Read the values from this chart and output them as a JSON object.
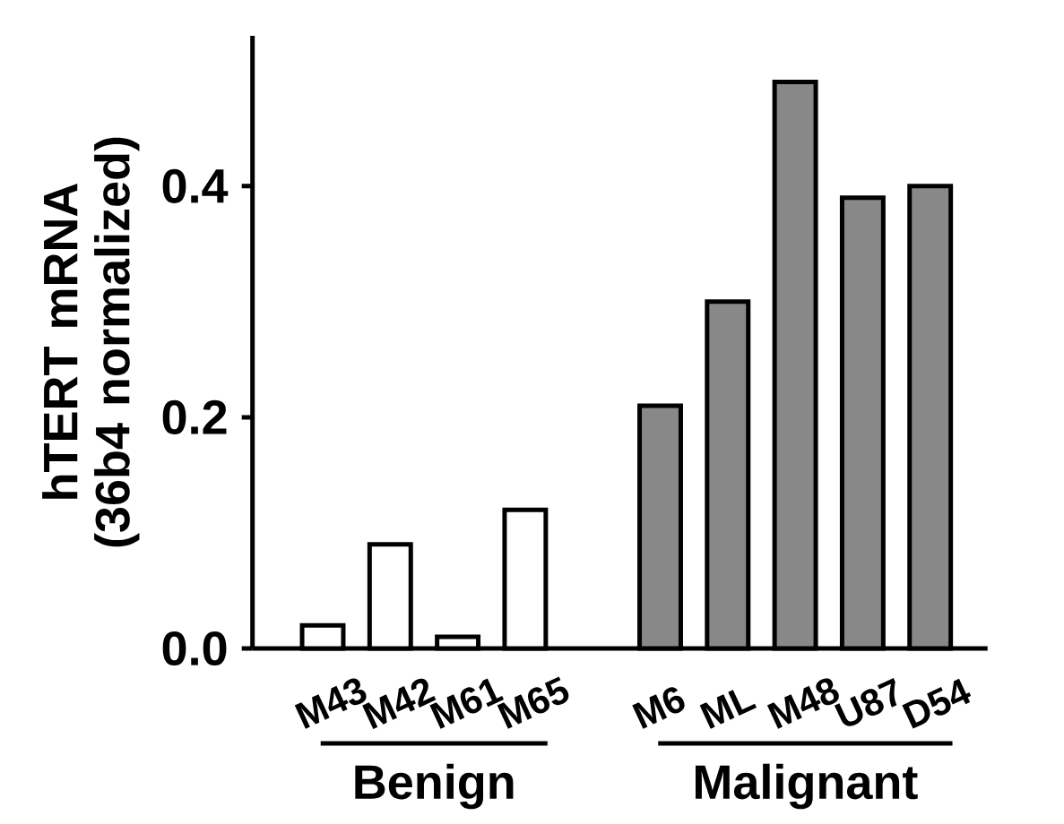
{
  "chart_data": {
    "type": "bar",
    "ylabel": "hTERT mRNA (36b4 normalized)",
    "categories": [
      "M43",
      "M42",
      "M61",
      "M65",
      null,
      "M6",
      "ML",
      "M48",
      "U87",
      "D54"
    ],
    "values": [
      0.02,
      0.09,
      0.01,
      0.12,
      null,
      0.21,
      0.3,
      0.49,
      0.39,
      0.4
    ],
    "colors": [
      "#ffffff",
      "#ffffff",
      "#ffffff",
      "#ffffff",
      null,
      "#888888",
      "#888888",
      "#888888",
      "#888888",
      "#888888"
    ],
    "ylim": [
      0,
      0.53
    ],
    "yticks": [
      {
        "value": 0,
        "label": "0.0"
      },
      {
        "value": 0.2,
        "label": "0.2"
      },
      {
        "value": 0.4,
        "label": "0.4"
      }
    ],
    "annotations": [
      "Benign",
      "Malignant"
    ],
    "grid": false
  }
}
